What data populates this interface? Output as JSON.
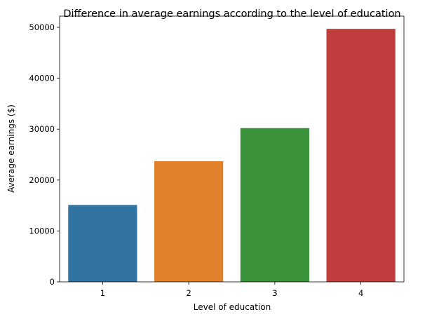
{
  "chart_data": {
    "type": "bar",
    "title": "Difference in average earnings according to the level of education",
    "xlabel": "Level of education",
    "ylabel": "Average earnings ($)",
    "categories": [
      "1",
      "2",
      "3",
      "4"
    ],
    "values": [
      15100,
      23700,
      30200,
      49700
    ],
    "colors": [
      "#3274a1",
      "#e1812c",
      "#3a923a",
      "#c03d3e"
    ],
    "ylim": [
      0,
      52200
    ],
    "yticks": [
      0,
      10000,
      20000,
      30000,
      40000,
      50000
    ],
    "grid": false,
    "legend": "none"
  }
}
